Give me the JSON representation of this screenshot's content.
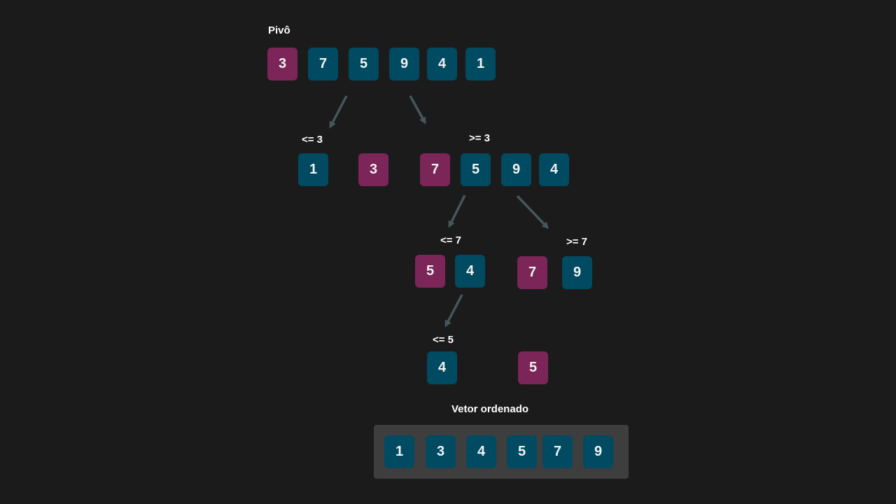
{
  "colors": {
    "background": "#1b1b1b",
    "pivot": "#7b2558",
    "element": "#004b61",
    "tray": "#3e3e3e",
    "arrow": "#46565b",
    "text": "#ffffff"
  },
  "labels": {
    "pivot": "Pivô",
    "le3": "<= 3",
    "ge3": ">= 3",
    "le7": "<= 7",
    "ge7": ">= 7",
    "le5": "<= 5",
    "sorted": "Vetor ordenado"
  },
  "rows": {
    "initial": [
      "3",
      "7",
      "5",
      "9",
      "4",
      "1"
    ],
    "left_of_3": [
      "1"
    ],
    "pivot_3": [
      "3"
    ],
    "right_of_3": [
      "7",
      "5",
      "9",
      "4"
    ],
    "left_of_7": [
      "5",
      "4"
    ],
    "pivot_7": [
      "7"
    ],
    "right_of_7": [
      "9"
    ],
    "left_of_5": [
      "4"
    ],
    "pivot_5": [
      "5"
    ],
    "sorted": [
      "1",
      "3",
      "4",
      "5",
      "7",
      "9"
    ]
  }
}
